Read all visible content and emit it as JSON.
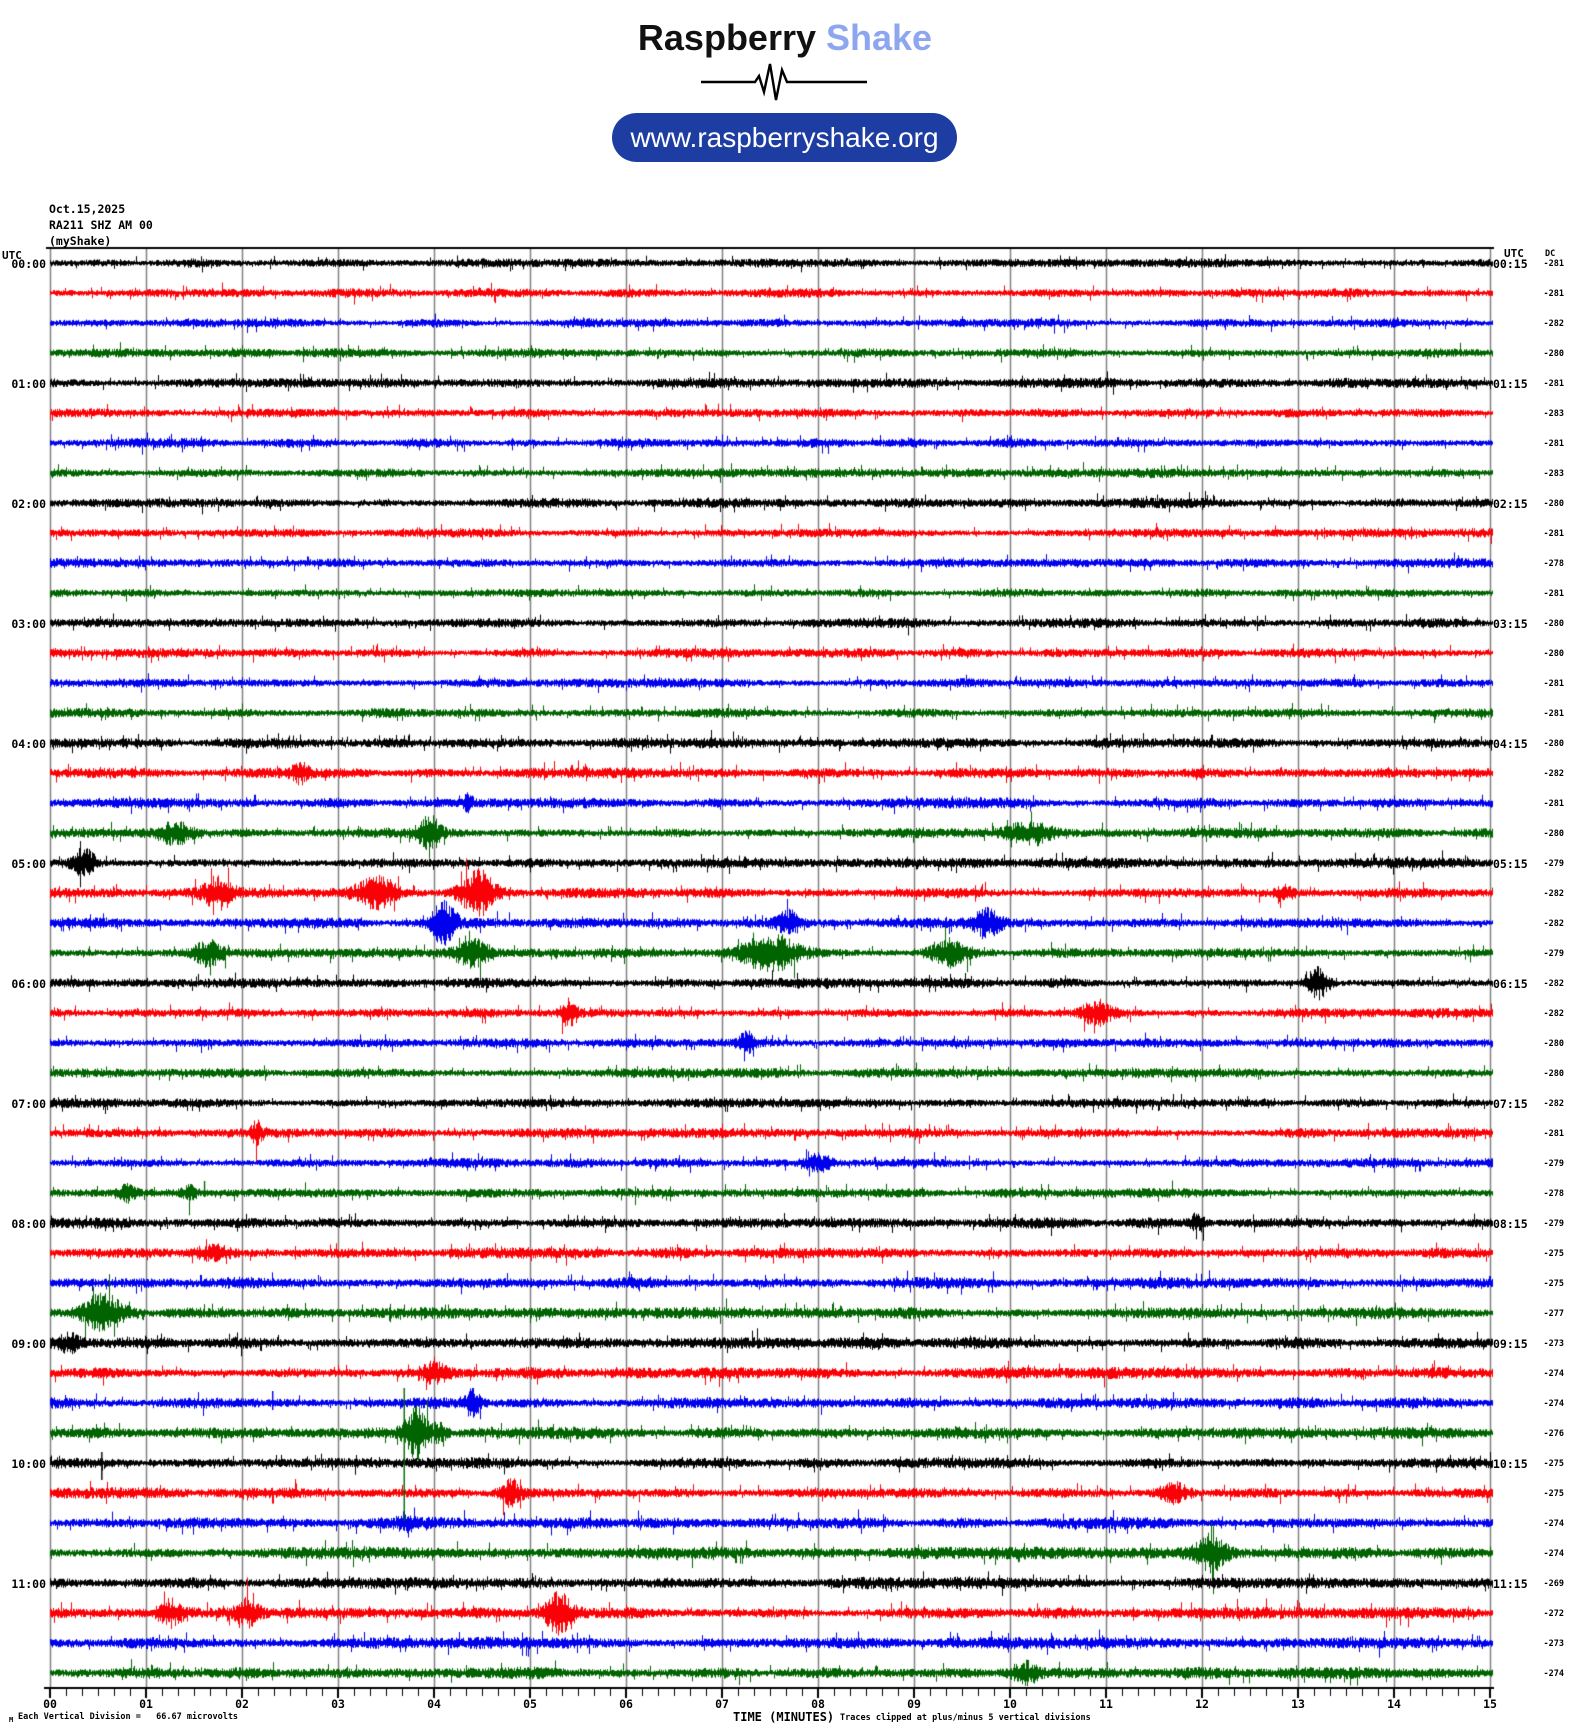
{
  "header": {
    "brand_black": "Raspberry",
    "brand_blue": "Shake",
    "brand_blue_color": "#8da6ef",
    "url_button": "www.raspberryshake.org",
    "button_color": "#1d3da2"
  },
  "station": {
    "date": "Oct.15,2025",
    "id": "RA211 SHZ AM 00",
    "network": "(myShake)"
  },
  "plot": {
    "utc_left": "UTC",
    "utc_right": "UTC",
    "dc_header": "DC",
    "x_axis_label": "TIME (MINUTES)",
    "clip_note": "Traces clipped at plus/minus 5 vertical divisions",
    "scale_note": "Each Vertical Division =   66.67 microvolts",
    "corner_glyph": "M"
  },
  "chart_data": {
    "type": "line",
    "subtype": "helicorder-seismogram",
    "minutes_per_row": 15,
    "x_ticks": [
      "00",
      "01",
      "02",
      "03",
      "04",
      "05",
      "06",
      "07",
      "08",
      "09",
      "10",
      "11",
      "12",
      "13",
      "14",
      "15"
    ],
    "trace_colors": {
      "black": "#000000",
      "red": "#fb0006",
      "blue": "#0000ee",
      "green": "#006400"
    },
    "grid_color": "#808080",
    "rows": [
      {
        "left": "00:00",
        "right": "00:15",
        "color": "black",
        "dc": -281
      },
      {
        "color": "red",
        "dc": -281
      },
      {
        "color": "blue",
        "dc": -282
      },
      {
        "color": "green",
        "dc": -280
      },
      {
        "left": "01:00",
        "right": "01:15",
        "color": "black",
        "dc": -281
      },
      {
        "color": "red",
        "dc": -283
      },
      {
        "color": "blue",
        "dc": -281
      },
      {
        "color": "green",
        "dc": -283
      },
      {
        "left": "02:00",
        "right": "02:15",
        "color": "black",
        "dc": -280
      },
      {
        "color": "red",
        "dc": -281
      },
      {
        "color": "blue",
        "dc": -278
      },
      {
        "color": "green",
        "dc": -281
      },
      {
        "left": "03:00",
        "right": "03:15",
        "color": "black",
        "dc": -280
      },
      {
        "color": "red",
        "dc": -280
      },
      {
        "color": "blue",
        "dc": -281
      },
      {
        "color": "green",
        "dc": -281
      },
      {
        "left": "04:00",
        "right": "04:15",
        "color": "black",
        "dc": -280
      },
      {
        "color": "red",
        "dc": -282
      },
      {
        "color": "blue",
        "dc": -281
      },
      {
        "color": "green",
        "dc": -280
      },
      {
        "left": "05:00",
        "right": "05:15",
        "color": "black",
        "dc": -279
      },
      {
        "color": "red",
        "dc": -282
      },
      {
        "color": "blue",
        "dc": -282
      },
      {
        "color": "green",
        "dc": -279
      },
      {
        "left": "06:00",
        "right": "06:15",
        "color": "black",
        "dc": -282
      },
      {
        "color": "red",
        "dc": -282
      },
      {
        "color": "blue",
        "dc": -280
      },
      {
        "color": "green",
        "dc": -280
      },
      {
        "left": "07:00",
        "right": "07:15",
        "color": "black",
        "dc": -282
      },
      {
        "color": "red",
        "dc": -281
      },
      {
        "color": "blue",
        "dc": -279
      },
      {
        "color": "green",
        "dc": -278
      },
      {
        "left": "08:00",
        "right": "08:15",
        "color": "black",
        "dc": -279
      },
      {
        "color": "red",
        "dc": -275
      },
      {
        "color": "blue",
        "dc": -275
      },
      {
        "color": "green",
        "dc": -277
      },
      {
        "left": "09:00",
        "right": "09:15",
        "color": "black",
        "dc": -273
      },
      {
        "color": "red",
        "dc": -274
      },
      {
        "color": "blue",
        "dc": -274
      },
      {
        "color": "green",
        "dc": -276
      },
      {
        "left": "10:00",
        "right": "10:15",
        "color": "black",
        "dc": -275
      },
      {
        "color": "red",
        "dc": -275
      },
      {
        "color": "blue",
        "dc": -274
      },
      {
        "color": "green",
        "dc": -274
      },
      {
        "left": "11:00",
        "right": "11:15",
        "color": "black",
        "dc": -269
      },
      {
        "color": "red",
        "dc": -272
      },
      {
        "color": "blue",
        "dc": -273
      },
      {
        "color": "green",
        "dc": -274
      }
    ],
    "events": [
      {
        "row": 17,
        "min": 2.6,
        "w": 0.08,
        "amp": 5
      },
      {
        "row": 18,
        "min": 4.35,
        "w": 0.05,
        "amp": 4
      },
      {
        "row": 19,
        "min": 1.3,
        "w": 0.2,
        "amp": 6
      },
      {
        "row": 19,
        "min": 3.95,
        "w": 0.12,
        "amp": 9
      },
      {
        "row": 19,
        "min": 10.2,
        "w": 0.25,
        "amp": 6
      },
      {
        "row": 20,
        "min": 0.35,
        "w": 0.12,
        "amp": 8
      },
      {
        "row": 21,
        "min": 1.75,
        "w": 0.15,
        "amp": 8
      },
      {
        "row": 21,
        "min": 3.4,
        "w": 0.22,
        "amp": 9
      },
      {
        "row": 21,
        "min": 4.45,
        "w": 0.18,
        "amp": 12
      },
      {
        "row": 21,
        "min": 12.85,
        "w": 0.1,
        "amp": 4
      },
      {
        "row": 22,
        "min": 4.1,
        "w": 0.13,
        "amp": 12
      },
      {
        "row": 22,
        "min": 7.7,
        "w": 0.12,
        "amp": 6
      },
      {
        "row": 22,
        "min": 9.75,
        "w": 0.15,
        "amp": 8
      },
      {
        "row": 23,
        "min": 1.65,
        "w": 0.15,
        "amp": 7
      },
      {
        "row": 23,
        "min": 4.4,
        "w": 0.2,
        "amp": 8
      },
      {
        "row": 23,
        "min": 7.5,
        "w": 0.3,
        "amp": 11
      },
      {
        "row": 23,
        "min": 9.35,
        "w": 0.2,
        "amp": 8
      },
      {
        "row": 24,
        "min": 13.2,
        "w": 0.12,
        "amp": 9
      },
      {
        "row": 25,
        "min": 5.4,
        "w": 0.08,
        "amp": 7
      },
      {
        "row": 25,
        "min": 10.9,
        "w": 0.15,
        "amp": 6
      },
      {
        "row": 26,
        "min": 7.25,
        "w": 0.08,
        "amp": 6
      },
      {
        "row": 29,
        "min": 2.15,
        "w": 0.06,
        "amp": 6
      },
      {
        "row": 30,
        "min": 8.0,
        "w": 0.15,
        "amp": 5
      },
      {
        "row": 31,
        "min": 0.8,
        "w": 0.08,
        "amp": 4
      },
      {
        "row": 31,
        "min": 1.45,
        "w": 0.08,
        "amp": 4
      },
      {
        "row": 32,
        "min": 11.95,
        "w": 0.08,
        "amp": 5
      },
      {
        "row": 33,
        "min": 1.7,
        "w": 0.2,
        "amp": 4
      },
      {
        "row": 35,
        "min": 0.55,
        "w": 0.22,
        "amp": 11
      },
      {
        "row": 36,
        "min": 0.2,
        "w": 0.1,
        "amp": 4
      },
      {
        "row": 37,
        "min": 4.0,
        "w": 0.15,
        "amp": 5
      },
      {
        "row": 38,
        "min": 4.4,
        "w": 0.1,
        "amp": 7
      },
      {
        "row": 39,
        "min": 3.82,
        "w": 0.12,
        "amp": 15
      },
      {
        "row": 39,
        "min": 4.05,
        "w": 0.08,
        "amp": 5
      },
      {
        "row": 41,
        "min": 4.8,
        "w": 0.12,
        "amp": 7
      },
      {
        "row": 41,
        "min": 11.7,
        "w": 0.15,
        "amp": 6
      },
      {
        "row": 42,
        "min": 3.7,
        "w": 0.07,
        "amp": 4
      },
      {
        "row": 43,
        "min": 12.1,
        "w": 0.15,
        "amp": 9
      },
      {
        "row": 45,
        "min": 1.25,
        "w": 0.12,
        "amp": 7
      },
      {
        "row": 45,
        "min": 2.05,
        "w": 0.12,
        "amp": 7
      },
      {
        "row": 45,
        "min": 5.3,
        "w": 0.15,
        "amp": 11
      },
      {
        "row": 47,
        "min": 10.15,
        "w": 0.15,
        "amp": 6
      }
    ],
    "spikes": [
      {
        "row": 31,
        "min": 1.61,
        "up": 12,
        "down": 4
      },
      {
        "row": 38,
        "min": 2.32,
        "up": 12,
        "down": 7
      },
      {
        "row": 39,
        "min": 3.69,
        "up": 45,
        "down": 88
      },
      {
        "row": 40,
        "min": 0.54,
        "up": 11,
        "down": 17
      }
    ],
    "noise_seed": 20251015
  }
}
